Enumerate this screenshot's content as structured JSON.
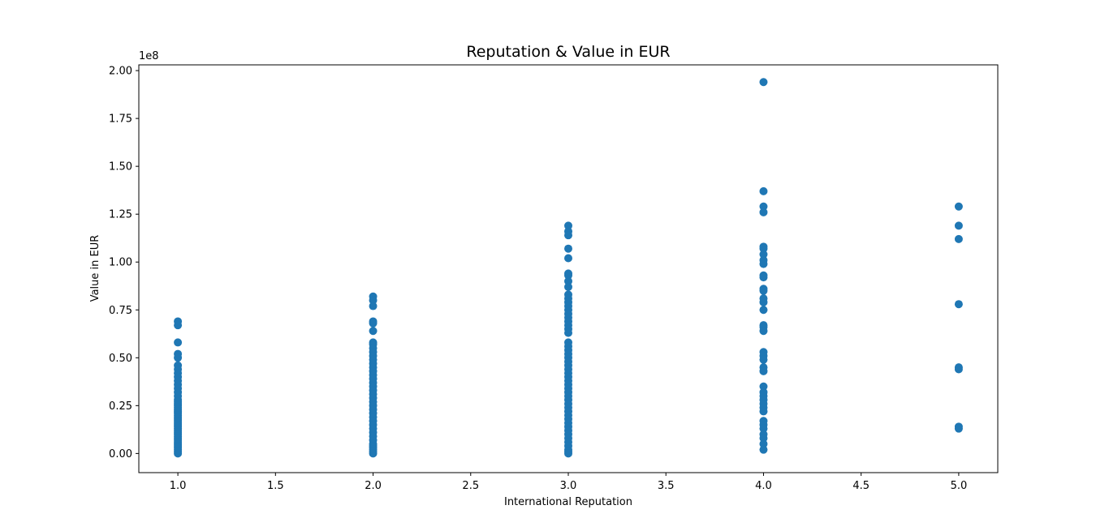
{
  "chart_data": {
    "type": "scatter",
    "title": "Reputation & Value in EUR",
    "xlabel": "International Reputation",
    "ylabel": "Value in EUR",
    "y_offset_text": "1e8",
    "xlim": [
      0.8,
      5.2
    ],
    "ylim": [
      -0.1,
      2.03
    ],
    "y_scale_factor": 100000000,
    "x_ticks": [
      "1.0",
      "1.5",
      "2.0",
      "2.5",
      "3.0",
      "3.5",
      "4.0",
      "4.5",
      "5.0"
    ],
    "x_tick_values": [
      1.0,
      1.5,
      2.0,
      2.5,
      3.0,
      3.5,
      4.0,
      4.5,
      5.0
    ],
    "y_ticks": [
      "0.00",
      "0.25",
      "0.50",
      "0.75",
      "1.00",
      "1.25",
      "1.50",
      "1.75",
      "2.00"
    ],
    "y_tick_values": [
      0.0,
      0.25,
      0.5,
      0.75,
      1.0,
      1.25,
      1.5,
      1.75,
      2.0
    ],
    "marker_color": "#1f77b4",
    "grid": false,
    "legend": "none",
    "series": [
      {
        "x": 1.0,
        "y": [
          0.69,
          0.67,
          0.58,
          0.52,
          0.5,
          0.46,
          0.44,
          0.42,
          0.4,
          0.38,
          0.36,
          0.34,
          0.32,
          0.3,
          0.28,
          0.27,
          0.26,
          0.25,
          0.24,
          0.23,
          0.22,
          0.21,
          0.2,
          0.19,
          0.18,
          0.17,
          0.16,
          0.15,
          0.14,
          0.13,
          0.12,
          0.11,
          0.1,
          0.09,
          0.08,
          0.07,
          0.06,
          0.05,
          0.04,
          0.03,
          0.02,
          0.01,
          0.0
        ]
      },
      {
        "x": 2.0,
        "y": [
          0.82,
          0.8,
          0.77,
          0.69,
          0.68,
          0.64,
          0.58,
          0.57,
          0.55,
          0.53,
          0.51,
          0.49,
          0.47,
          0.45,
          0.43,
          0.41,
          0.39,
          0.37,
          0.35,
          0.33,
          0.31,
          0.29,
          0.27,
          0.25,
          0.23,
          0.21,
          0.19,
          0.17,
          0.15,
          0.13,
          0.11,
          0.09,
          0.07,
          0.05,
          0.04,
          0.03,
          0.02,
          0.01,
          0.0
        ]
      },
      {
        "x": 3.0,
        "y": [
          1.19,
          1.16,
          1.14,
          1.07,
          1.02,
          0.94,
          0.93,
          0.9,
          0.87,
          0.83,
          0.81,
          0.79,
          0.77,
          0.75,
          0.73,
          0.71,
          0.69,
          0.67,
          0.65,
          0.63,
          0.58,
          0.56,
          0.54,
          0.52,
          0.5,
          0.48,
          0.46,
          0.44,
          0.42,
          0.4,
          0.38,
          0.36,
          0.34,
          0.32,
          0.3,
          0.28,
          0.26,
          0.24,
          0.22,
          0.2,
          0.18,
          0.16,
          0.14,
          0.12,
          0.1,
          0.08,
          0.06,
          0.04,
          0.02,
          0.01,
          0.0
        ]
      },
      {
        "x": 4.0,
        "y": [
          1.94,
          1.37,
          1.29,
          1.26,
          1.08,
          1.07,
          1.04,
          1.01,
          0.99,
          0.93,
          0.92,
          0.86,
          0.85,
          0.81,
          0.79,
          0.75,
          0.67,
          0.66,
          0.64,
          0.53,
          0.51,
          0.49,
          0.45,
          0.43,
          0.35,
          0.32,
          0.3,
          0.28,
          0.26,
          0.24,
          0.22,
          0.17,
          0.15,
          0.13,
          0.1,
          0.08,
          0.05,
          0.02
        ]
      },
      {
        "x": 5.0,
        "y": [
          1.29,
          1.19,
          1.12,
          0.78,
          0.45,
          0.44,
          0.14,
          0.13
        ]
      }
    ]
  }
}
